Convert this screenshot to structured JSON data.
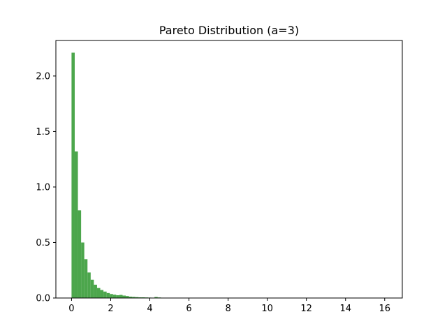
{
  "chart_data": {
    "type": "bar",
    "title": "Pareto Distribution (a=3)",
    "xlabel": "",
    "ylabel": "",
    "xlim": [
      -0.8,
      16.9
    ],
    "ylim": [
      0,
      2.32
    ],
    "xticks": [
      0,
      2,
      4,
      6,
      8,
      10,
      12,
      14,
      16
    ],
    "yticks": [
      0.0,
      0.5,
      1.0,
      1.5,
      2.0
    ],
    "xtick_labels": [
      "0",
      "2",
      "4",
      "6",
      "8",
      "10",
      "12",
      "14",
      "16"
    ],
    "ytick_labels": [
      "0.0",
      "0.5",
      "1.0",
      "1.5",
      "2.0"
    ],
    "grid": false,
    "bin_start": 0,
    "bin_width": 0.163,
    "bar_color": "#4ca64c",
    "values": [
      2.21,
      1.32,
      0.79,
      0.5,
      0.35,
      0.23,
      0.165,
      0.12,
      0.09,
      0.072,
      0.058,
      0.045,
      0.036,
      0.03,
      0.025,
      0.028,
      0.022,
      0.018,
      0.012,
      0.01,
      0.008,
      0.006,
      0.006,
      0.005,
      0.004,
      0.001,
      0.009,
      0.005,
      0.002,
      0.001,
      0.001,
      0.001,
      0.0005,
      0.0005,
      0.0005,
      0.0003,
      0.0003,
      0.0002,
      0.0002,
      0.0002
    ]
  }
}
